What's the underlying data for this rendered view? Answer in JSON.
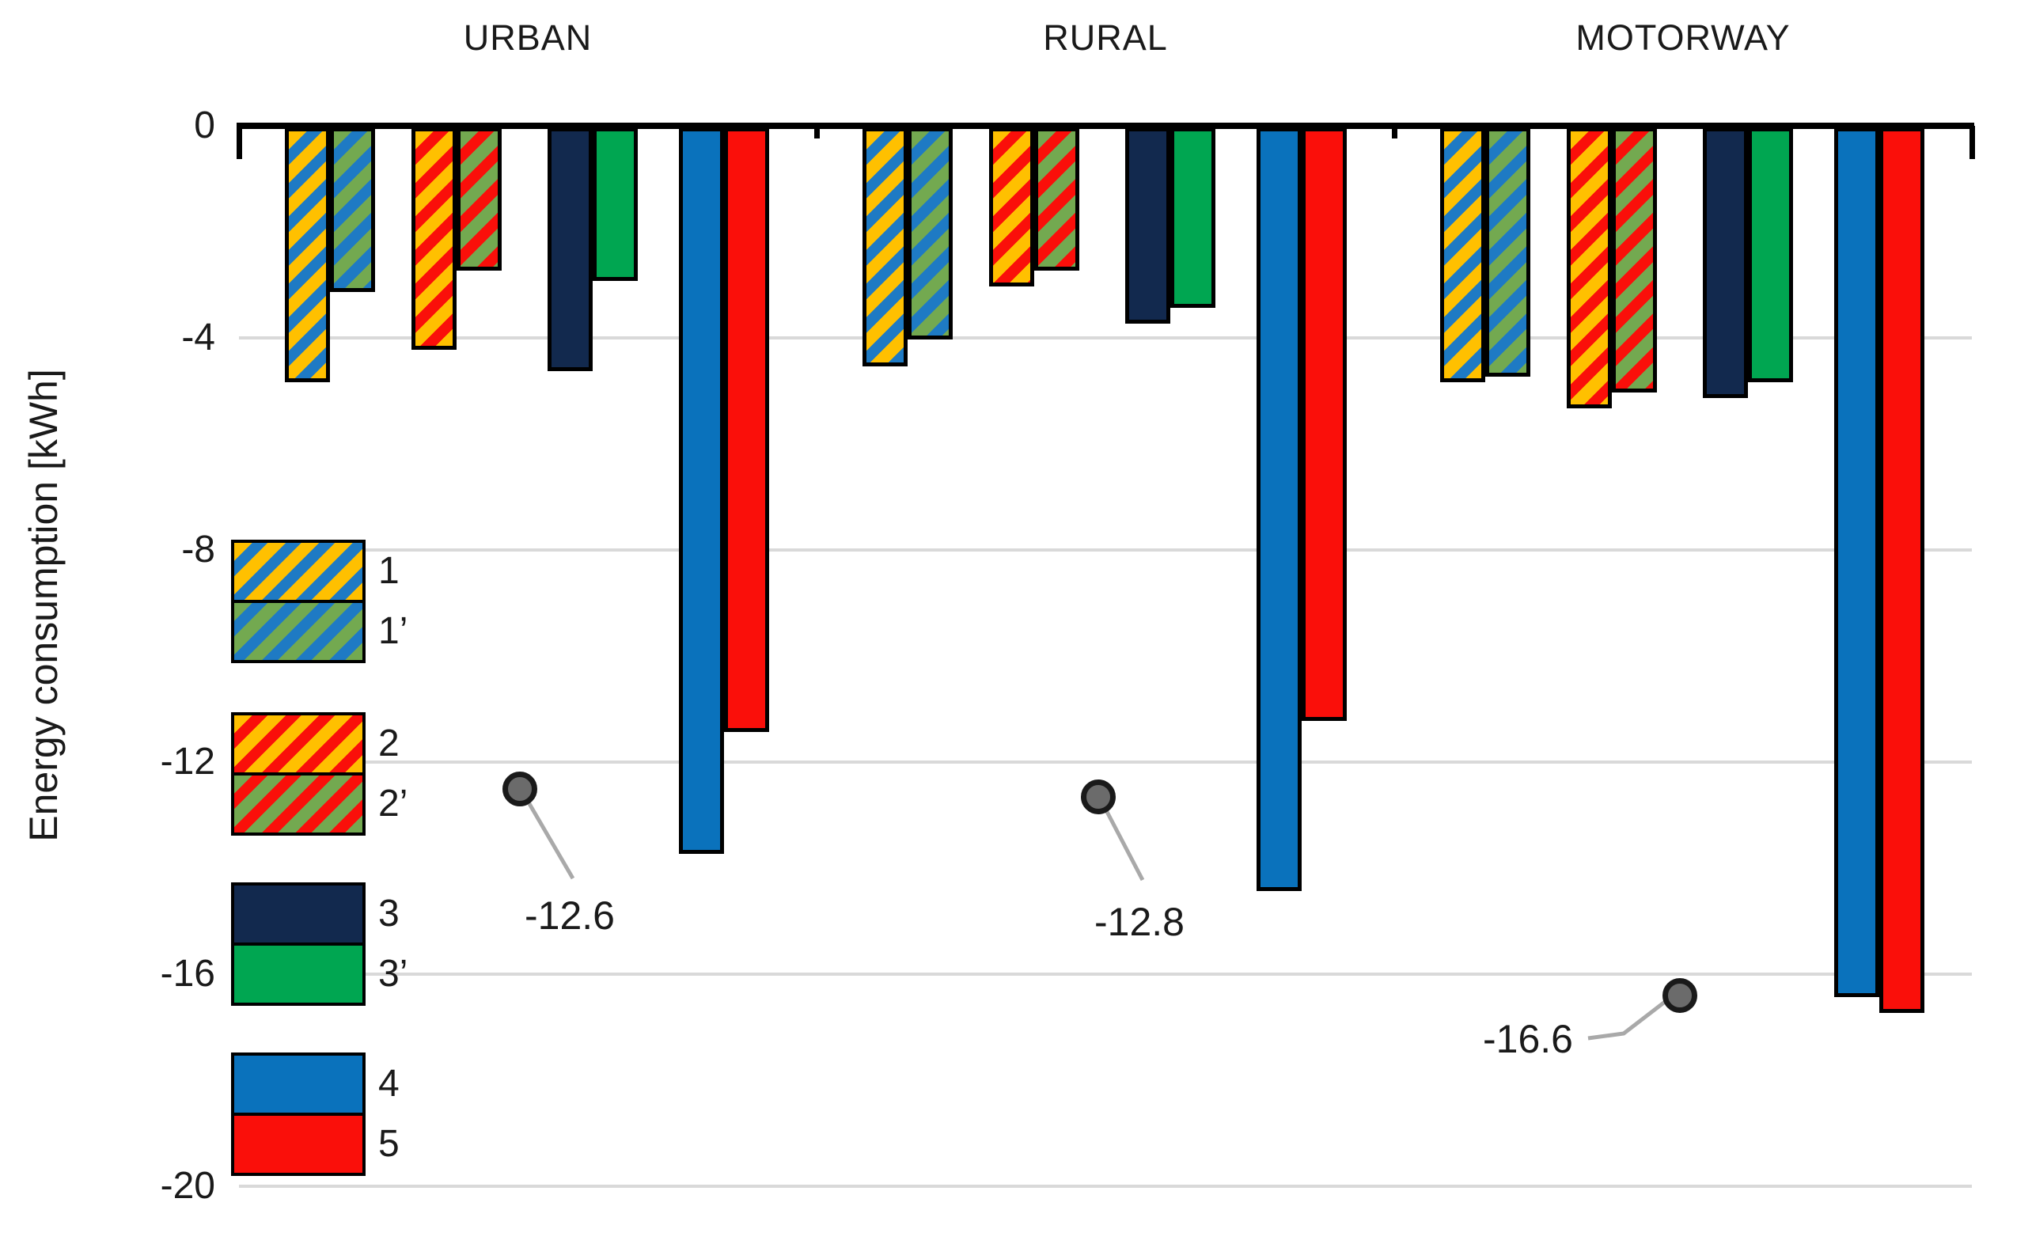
{
  "chart_data": {
    "type": "bar",
    "title": "",
    "ylabel": "Energy consumption [kWh]",
    "xlabel": "",
    "categories": [
      "URBAN",
      "RURAL",
      "MOTORWAY"
    ],
    "ylim": [
      -20,
      0
    ],
    "y_ticks": [
      "0",
      "-4",
      "-8",
      "-12",
      "-16",
      "-20"
    ],
    "y_tick_values": [
      0,
      -4,
      -8,
      -12,
      -16,
      -20
    ],
    "grid": true,
    "legend_position": "inside-left",
    "series": [
      {
        "name": "1",
        "pattern": "hatch-yellow-blue",
        "values": [
          -4.8,
          -4.5,
          -4.8
        ]
      },
      {
        "name": "1’",
        "pattern": "hatch-green-blue",
        "values": [
          -3.1,
          -4.0,
          -4.7
        ]
      },
      {
        "name": "2",
        "pattern": "hatch-yellow-red",
        "values": [
          -4.2,
          -3.0,
          -5.3
        ]
      },
      {
        "name": "2’",
        "pattern": "hatch-green-red",
        "values": [
          -2.7,
          -2.7,
          -5.0
        ]
      },
      {
        "name": "3",
        "pattern": "solid-navy",
        "values": [
          -4.6,
          -3.7,
          -5.1
        ]
      },
      {
        "name": "3’",
        "pattern": "solid-green",
        "values": [
          -2.9,
          -3.4,
          -4.8
        ]
      },
      {
        "name": "4",
        "pattern": "solid-blue",
        "values": [
          -13.7,
          -14.4,
          -16.4
        ]
      },
      {
        "name": "5",
        "pattern": "solid-red",
        "values": [
          -11.4,
          -11.2,
          -16.7
        ]
      }
    ],
    "annotations": [
      {
        "label": "-12.6",
        "category": "URBAN",
        "marker_value": -12.5
      },
      {
        "label": "-12.8",
        "category": "RURAL",
        "marker_value": -12.65
      },
      {
        "label": "-16.6",
        "category": "MOTORWAY",
        "marker_value": -16.4
      }
    ]
  },
  "colors": {
    "hatch_yellow": "#FFC000",
    "hatch_green": "#73A950",
    "stripe_blue": "#1E7AC4",
    "stripe_red": "#FA0F0A",
    "navy": "#12294E",
    "green": "#00A651",
    "blue": "#0A72BC",
    "red": "#FA0F0A",
    "gridline": "#D9D9D9",
    "axis": "#000000",
    "marker_fill": "#6B6B6B",
    "leader_line": "#A9A9A9",
    "text": "#1A1A1A"
  }
}
